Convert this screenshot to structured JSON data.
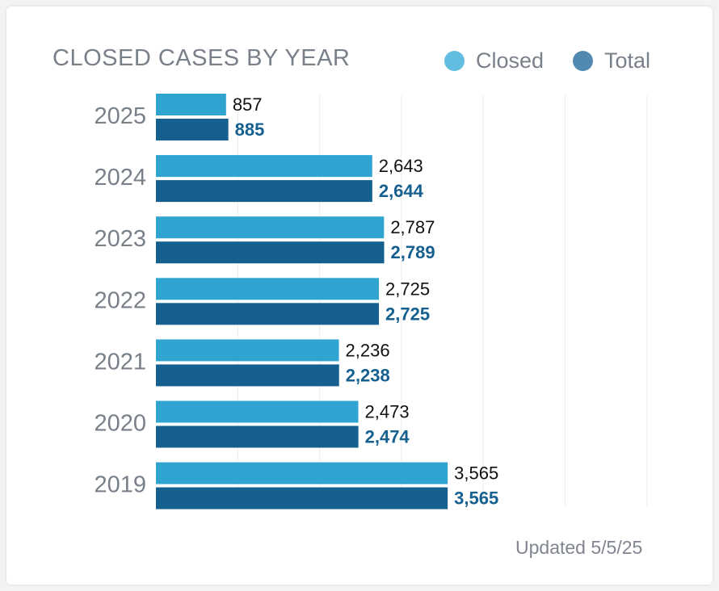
{
  "chart_data": {
    "type": "bar",
    "orientation": "horizontal",
    "title": "CLOSED CASES BY YEAR",
    "categories": [
      "2025",
      "2024",
      "2023",
      "2022",
      "2021",
      "2020",
      "2019"
    ],
    "series": [
      {
        "name": "Closed",
        "values": [
          857,
          2643,
          2787,
          2725,
          2236,
          2473,
          3565
        ],
        "labels": [
          "857",
          "2,643",
          "2,787",
          "2,725",
          "2,236",
          "2,473",
          "3,565"
        ],
        "color": "#2fa4d0"
      },
      {
        "name": "Total",
        "values": [
          885,
          2644,
          2789,
          2725,
          2238,
          2474,
          3565
        ],
        "labels": [
          "885",
          "2,644",
          "2,789",
          "2,725",
          "2,238",
          "2,474",
          "3,565"
        ],
        "color": "#15608f"
      }
    ],
    "xlim": [
      0,
      6000
    ],
    "grid": true,
    "legend": "top-right",
    "legend_colors": {
      "Closed": "#63bde0",
      "Total": "#5289b0"
    }
  },
  "footer": {
    "updated": "Updated 5/5/25"
  }
}
